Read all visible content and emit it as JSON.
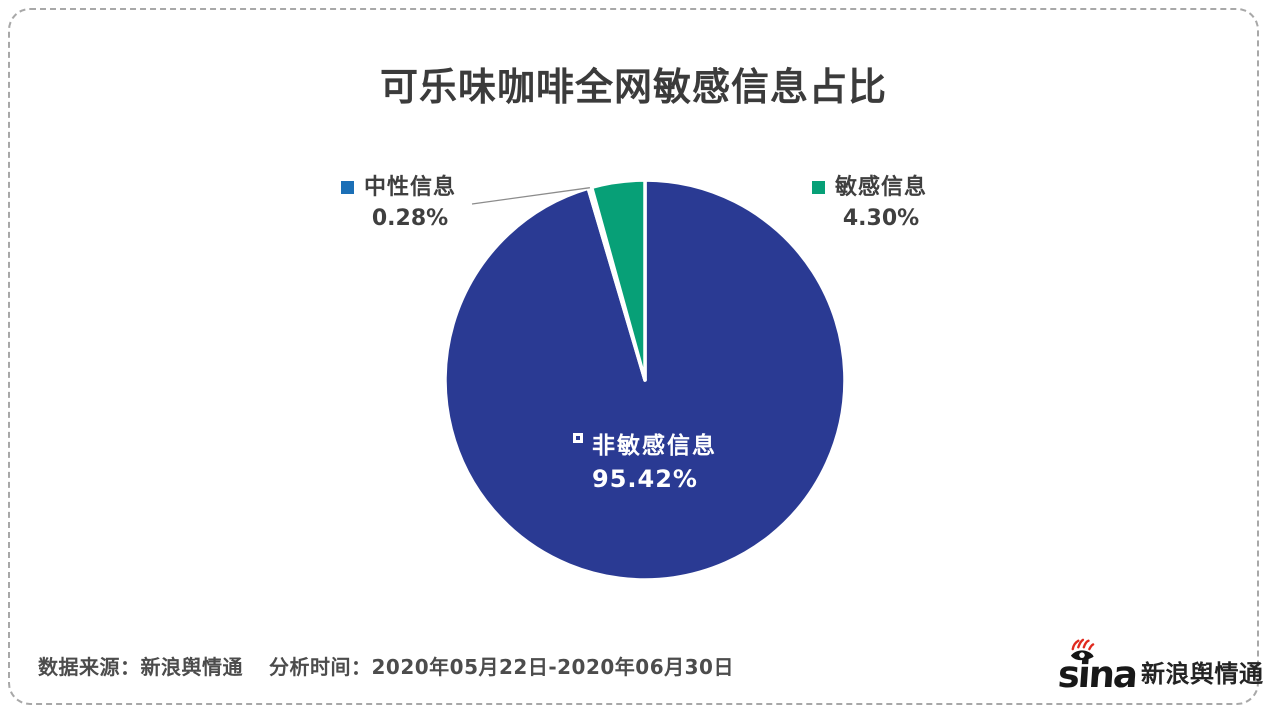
{
  "chart_data": {
    "type": "pie",
    "title": "可乐味咖啡全网敏感信息占比",
    "unit": "percent",
    "start_angle": "top",
    "direction": "clockwise",
    "legend_position": "none",
    "background": "#ffffff",
    "slices": [
      {
        "name": "非敏感信息",
        "value": 95.42,
        "pct_label": "95.42%",
        "color": "#2a3a93",
        "label_placement": "inside"
      },
      {
        "name": "中性信息",
        "value": 0.28,
        "pct_label": "0.28%",
        "color": "#1b6fb6",
        "label_placement": "outside-left",
        "leader_line": true
      },
      {
        "name": "敏感信息",
        "value": 4.3,
        "pct_label": "4.30%",
        "color": "#07a077",
        "label_placement": "outside-right"
      }
    ]
  },
  "footer": {
    "source": "数据来源：新浪舆情通",
    "period": "分析时间：2020年05月22日-2020年06月30日",
    "logo": {
      "latin": "sina",
      "cn": "新浪舆情通",
      "accent_color": "#e02a1f"
    }
  }
}
